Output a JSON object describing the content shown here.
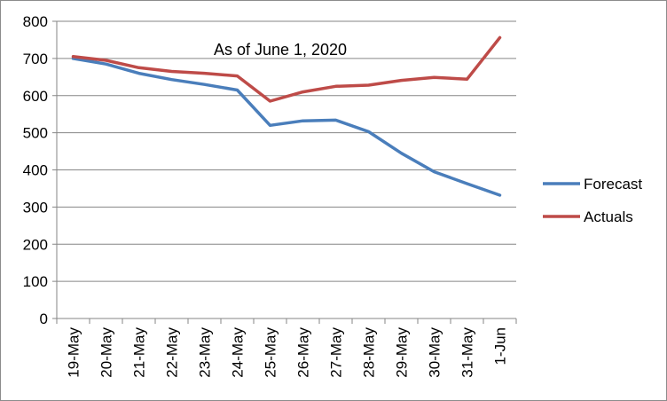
{
  "chart_data": {
    "type": "line",
    "title": "As of June 1, 2020",
    "xlabel": "",
    "ylabel": "",
    "ylim": [
      0,
      800
    ],
    "yticks": [
      0,
      100,
      200,
      300,
      400,
      500,
      600,
      700,
      800
    ],
    "grid": true,
    "legend_position": "right",
    "categories": [
      "19-May",
      "20-May",
      "21-May",
      "22-May",
      "23-May",
      "24-May",
      "25-May",
      "26-May",
      "27-May",
      "28-May",
      "29-May",
      "30-May",
      "31-May",
      "1-Jun"
    ],
    "series": [
      {
        "name": "Forecast",
        "color": "#4a7ebb",
        "values": [
          700,
          685,
          660,
          643,
          630,
          615,
          520,
          532,
          534,
          503,
          445,
          395,
          363,
          332
        ]
      },
      {
        "name": "Actuals",
        "color": "#be4b48",
        "values": [
          705,
          695,
          675,
          665,
          660,
          653,
          585,
          610,
          625,
          628,
          641,
          649,
          644,
          756
        ]
      }
    ]
  }
}
